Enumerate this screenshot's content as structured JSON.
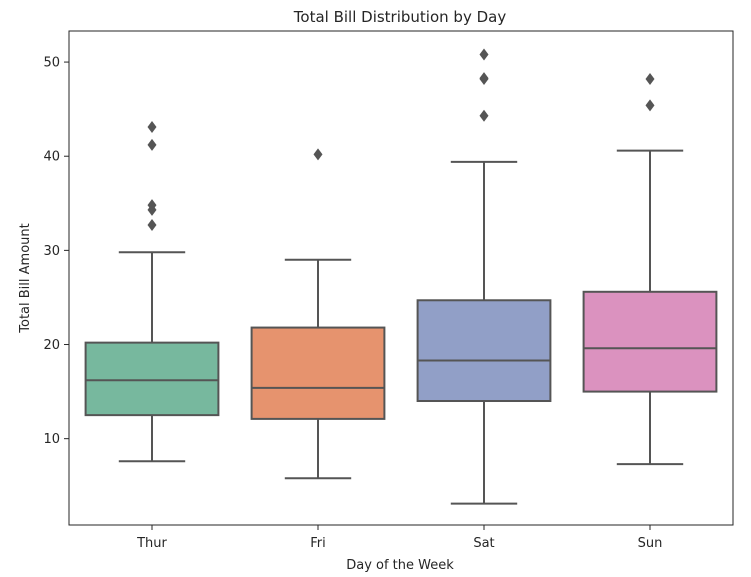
{
  "chart_data": {
    "type": "box",
    "title": "Total Bill Distribution by Day",
    "xlabel": "Day of the Week",
    "ylabel": "Total Bill Amount",
    "ylim": [
      0.83,
      53.3
    ],
    "yticks": [
      10,
      20,
      30,
      40,
      50
    ],
    "grid": false,
    "categories": [
      "Thur",
      "Fri",
      "Sat",
      "Sun"
    ],
    "boxes": [
      {
        "category": "Thur",
        "color": "#77b89e",
        "whisker_low": 7.6,
        "q1": 12.5,
        "median": 16.2,
        "q3": 20.2,
        "whisker_high": 29.8,
        "outliers": [
          32.7,
          34.3,
          34.8,
          41.2,
          43.1
        ]
      },
      {
        "category": "Fri",
        "color": "#e6936e",
        "whisker_low": 5.8,
        "q1": 12.1,
        "median": 15.4,
        "q3": 21.8,
        "whisker_high": 29.0,
        "outliers": [
          40.2
        ]
      },
      {
        "category": "Sat",
        "color": "#919fc7",
        "whisker_low": 3.1,
        "q1": 14.0,
        "median": 18.3,
        "q3": 24.7,
        "whisker_high": 39.4,
        "outliers": [
          44.3,
          48.3,
          48.2,
          50.8
        ]
      },
      {
        "category": "Sun",
        "color": "#db92bf",
        "whisker_low": 7.3,
        "q1": 15.0,
        "median": 19.6,
        "q3": 25.6,
        "whisker_high": 40.6,
        "outliers": [
          45.4,
          48.2
        ]
      }
    ],
    "line_color": "#555555",
    "outlier_color": "#555555"
  }
}
